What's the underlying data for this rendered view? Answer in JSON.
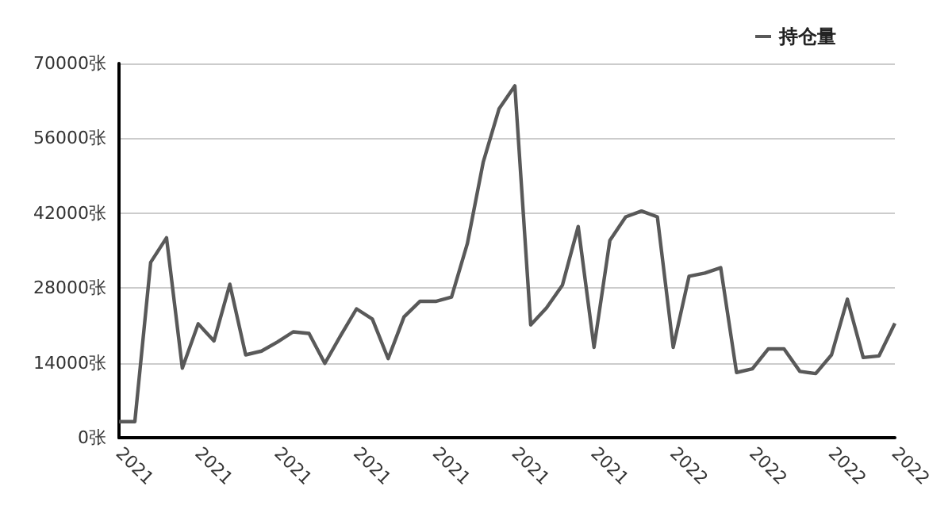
{
  "chart_data": {
    "type": "line",
    "categories": [
      "2021",
      null,
      null,
      null,
      null,
      "2021",
      null,
      null,
      null,
      null,
      "2021",
      null,
      null,
      null,
      null,
      "2021",
      null,
      null,
      null,
      null,
      "2021",
      null,
      null,
      null,
      null,
      "2021",
      null,
      null,
      null,
      null,
      "2021",
      null,
      null,
      null,
      null,
      "2022",
      null,
      null,
      null,
      null,
      "2022",
      null,
      null,
      null,
      null,
      "2022",
      null,
      null,
      null,
      "2022"
    ],
    "series": [
      {
        "name": "持仓量",
        "color": "#595959",
        "values": [
          3000,
          3000,
          32800,
          37400,
          13000,
          21300,
          18100,
          28700,
          15500,
          16200,
          17900,
          19800,
          19500,
          13900,
          19100,
          24100,
          22200,
          14800,
          22600,
          25500,
          25500,
          26300,
          36300,
          51500,
          61500,
          65800,
          21100,
          24300,
          28500,
          39500,
          16900,
          36900,
          41300,
          42400,
          41300,
          16900,
          30200,
          30800,
          31800,
          12200,
          12900,
          16600,
          16600,
          12400,
          12000,
          15500,
          25900,
          15000,
          15300,
          21400
        ]
      }
    ],
    "ylim": [
      0,
      70000
    ],
    "yticks": [
      {
        "value": 0,
        "label": "0张"
      },
      {
        "value": 14000,
        "label": "14000张"
      },
      {
        "value": 28000,
        "label": "28000张"
      },
      {
        "value": 42000,
        "label": "42000张"
      },
      {
        "value": 56000,
        "label": "56000张"
      },
      {
        "value": 70000,
        "label": "70000张"
      }
    ],
    "grid": "y",
    "legend": "top right",
    "marker": "none",
    "line_style": "solid"
  }
}
